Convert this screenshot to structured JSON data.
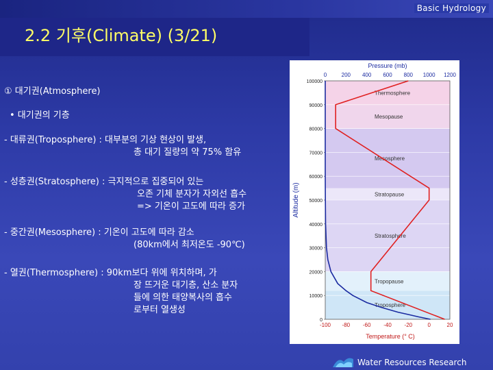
{
  "header": {
    "course": "Basic Hydrology"
  },
  "slide": {
    "title": "2.2 기후(Climate) (3/21)"
  },
  "content": {
    "heading": "① 대기권(Atmosphere)",
    "bullet": "• 대기권의 기층",
    "items": [
      {
        "lines": [
          "- 대류권(Troposphere) : 대부분의 기상 현상이 발생,",
          "총 대기 질량의 약 75% 함유"
        ]
      },
      {
        "lines": [
          "- 성층권(Stratosphere) : 극지적으로 집중되어 있는",
          "오존 기체 분자가 자외선 흡수",
          "=> 기온이 고도에 따라 증가"
        ]
      },
      {
        "lines": [
          "- 중간권(Mesosphere) : 기온이 고도에 따라 감소",
          "(80km에서 최저온도 -90℃)"
        ]
      },
      {
        "lines": [
          "- 열권(Thermosphere) : 90km보다 위에 위치하며, 가",
          "장 뜨거운 대기층, 산소 분자",
          "들에 의한 태양복사의 흡수",
          "로부터 열생성"
        ]
      }
    ]
  },
  "chart_data": {
    "type": "line",
    "top_axis_title": "Pressure (mb)",
    "top_ticks": [
      "0",
      "200",
      "400",
      "600",
      "800",
      "1000",
      "1200"
    ],
    "bottom_axis_title": "Temperature (° C)",
    "bottom_ticks": [
      "-100",
      "-80",
      "-60",
      "-40",
      "-20",
      "0",
      "20"
    ],
    "y_axis_title": "Altitude (m)",
    "y_ticks": [
      "0",
      "10000",
      "20000",
      "30000",
      "40000",
      "50000",
      "60000",
      "70000",
      "80000",
      "90000",
      "100000"
    ],
    "xlim_temperature": [
      -100,
      20
    ],
    "xlim_pressure": [
      0,
      1200
    ],
    "ylim": [
      0,
      100000
    ],
    "layers": [
      {
        "label": "Troposphere",
        "from": 0,
        "to": 12000,
        "color": "#cfe6f7"
      },
      {
        "label": "Tropopause",
        "from": 12000,
        "to": 20000,
        "color": "#e3f1fb"
      },
      {
        "label": "Stratosphere",
        "from": 20000,
        "to": 50000,
        "color": "#ddd6f4"
      },
      {
        "label": "Stratopause",
        "from": 50000,
        "to": 55000,
        "color": "#ece7f9"
      },
      {
        "label": "Mesosphere",
        "from": 55000,
        "to": 80000,
        "color": "#d4c9f0"
      },
      {
        "label": "Mesopause",
        "from": 80000,
        "to": 90000,
        "color": "#f0d6ec"
      },
      {
        "label": "Thermosphere",
        "from": 90000,
        "to": 100000,
        "color": "#f5d3e8"
      }
    ],
    "temperature_series": {
      "color": "#e02020",
      "points": [
        [
          15,
          0
        ],
        [
          -56,
          12000
        ],
        [
          -56,
          20000
        ],
        [
          0,
          50000
        ],
        [
          0,
          55000
        ],
        [
          -90,
          80000
        ],
        [
          -90,
          90000
        ],
        [
          -20,
          100000
        ]
      ]
    },
    "pressure_series": {
      "color": "#1a2aa0",
      "points": [
        [
          1013,
          0
        ],
        [
          900,
          1000
        ],
        [
          800,
          2000
        ],
        [
          700,
          3000
        ],
        [
          540,
          5000
        ],
        [
          400,
          7000
        ],
        [
          265,
          10000
        ],
        [
          200,
          12000
        ],
        [
          120,
          15000
        ],
        [
          55,
          20000
        ],
        [
          25,
          25000
        ],
        [
          12,
          30000
        ],
        [
          3,
          40000
        ],
        [
          1,
          50000
        ],
        [
          0.3,
          60000
        ],
        [
          0,
          70000
        ],
        [
          0,
          80000
        ],
        [
          0,
          100000
        ]
      ]
    }
  },
  "footer": {
    "org": "Water Resources Research"
  }
}
